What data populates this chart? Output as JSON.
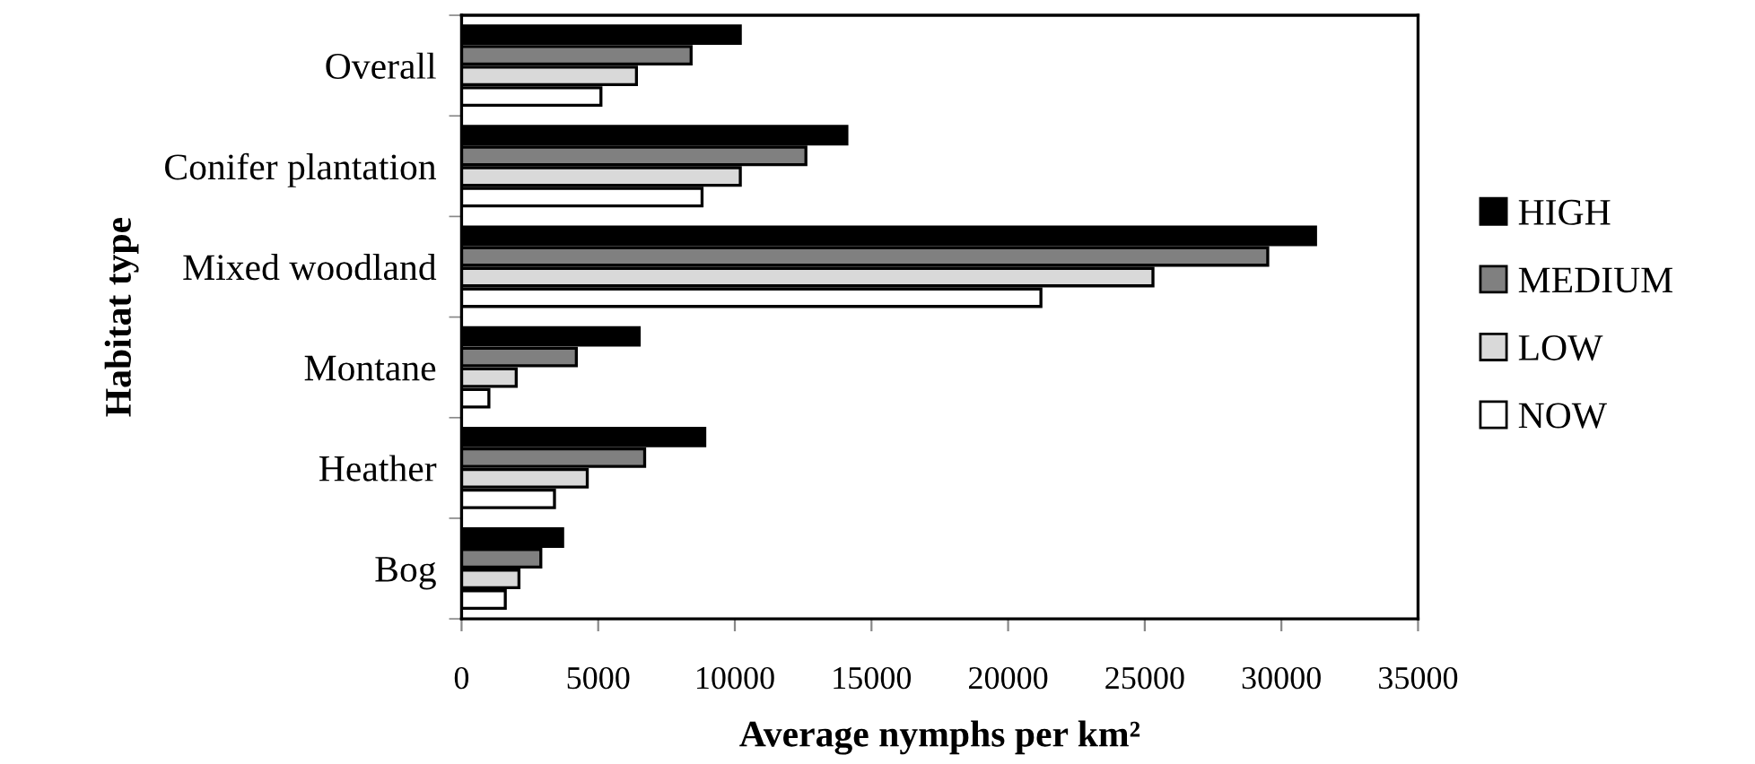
{
  "chart_data": {
    "type": "bar",
    "orientation": "horizontal",
    "categories": [
      "Overall",
      "Conifer plantation",
      "Mixed woodland",
      "Montane",
      "Heather",
      "Bog"
    ],
    "series": [
      {
        "name": "HIGH",
        "color": "#000000",
        "values": [
          10200,
          14100,
          31250,
          6500,
          8900,
          3700
        ]
      },
      {
        "name": "MEDIUM",
        "color": "#808080",
        "values": [
          8400,
          12600,
          29500,
          4200,
          6700,
          2900
        ]
      },
      {
        "name": "LOW",
        "color": "#d9d9d9",
        "values": [
          6400,
          10200,
          25300,
          2000,
          4600,
          2100
        ]
      },
      {
        "name": "NOW",
        "color": "#ffffff",
        "values": [
          5100,
          8800,
          21200,
          1000,
          3400,
          1600
        ]
      }
    ],
    "xlabel": "Average nymphs per km²",
    "ylabel": "Habitat type",
    "xlim": [
      0,
      35000
    ],
    "xticks": [
      0,
      5000,
      10000,
      15000,
      20000,
      25000,
      30000,
      35000
    ],
    "grid": false,
    "legend": "right"
  }
}
